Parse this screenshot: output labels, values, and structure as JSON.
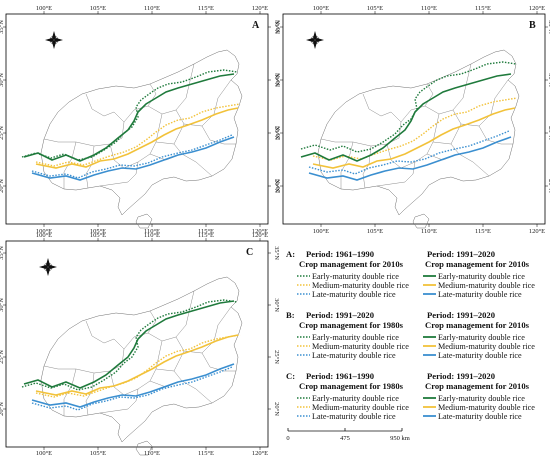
{
  "panels": [
    {
      "letter": "A"
    },
    {
      "letter": "B"
    },
    {
      "letter": "C"
    }
  ],
  "axes": {
    "lon_labels": [
      "100°E",
      "105°E",
      "110°E",
      "115°E",
      "120°E"
    ],
    "lat_labels": [
      "20°N",
      "25°N",
      "30°N",
      "35°N"
    ]
  },
  "legend": {
    "items": [
      "Early-maturity double rice",
      "Medium-maturity double rice",
      "Late-maturity double rice"
    ],
    "rows": [
      {
        "letter": "A:",
        "left_period": "Period: 1961–1990",
        "left_mgmt": "Crop management for 2010s",
        "right_period": "Period: 1991–2020",
        "right_mgmt": "Crop management for 2010s"
      },
      {
        "letter": "B:",
        "left_period": "Period: 1991–2020",
        "left_mgmt": "Crop management for 1980s",
        "right_period": "Period: 1991–2020",
        "right_mgmt": "Crop management for 2010s"
      },
      {
        "letter": "C:",
        "left_period": "Period: 1961–1990",
        "left_mgmt": "Crop management for 1980s",
        "right_period": "Period: 1991–2020",
        "right_mgmt": "Crop management for 2010s"
      }
    ]
  },
  "scale_bar": {
    "labels": [
      "0",
      "475",
      "950 km"
    ]
  },
  "colors": {
    "early": "#1f7a3c",
    "medium": "#f2c23a",
    "late": "#3b8fd0",
    "boundary": "#6e6e6e"
  }
}
